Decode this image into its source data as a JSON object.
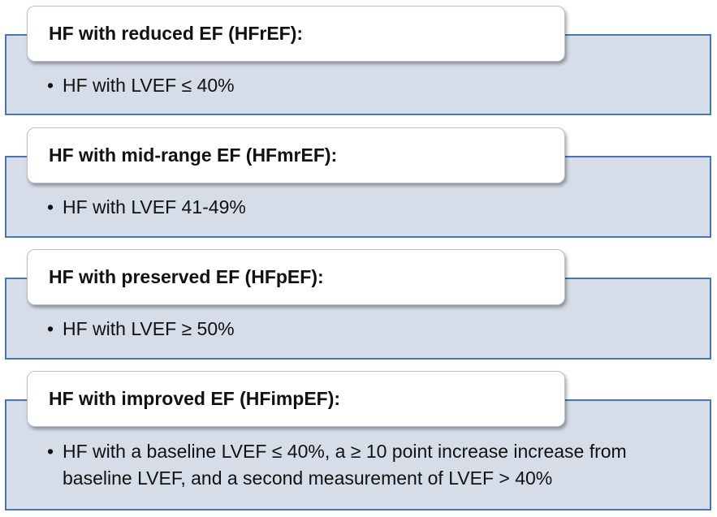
{
  "items": [
    {
      "title": "HF with reduced EF (HFrEF):",
      "bullet": "HF with LVEF ≤ 40%"
    },
    {
      "title": "HF with mid-range EF (HFmrEF):",
      "bullet": "HF with LVEF 41-49%"
    },
    {
      "title": "HF with preserved EF (HFpEF):",
      "bullet": "HF with LVEF ≥ 50%"
    },
    {
      "title": "HF with improved EF (HFimpEF):",
      "bullet": "HF with a baseline LVEF ≤ 40%, a ≥ 10 point increase increase from baseline LVEF, and a second measurement of LVEF > 40%"
    }
  ]
}
